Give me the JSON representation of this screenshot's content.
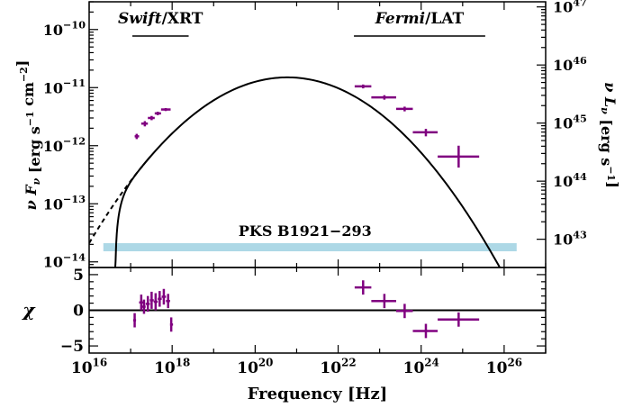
{
  "chart_data": {
    "type": "scatter",
    "source_name": "PKS B1921−293",
    "instruments": [
      {
        "name_italic": "Swift",
        "name_rest": "/XRT",
        "band_hz": [
          1.1e+17,
          2.5e+18
        ]
      },
      {
        "name_italic": "Fermi",
        "name_rest": "/LAT",
        "band_hz": [
          2.4e+22,
          3.5e+25
        ]
      }
    ],
    "xlabel": "Frequency [Hz]",
    "x_log": true,
    "xlim": [
      1e+16,
      1e+27
    ],
    "x_ticks": [
      1e+16,
      1e+18,
      1e+20,
      1e+22,
      1e+24,
      1e+26
    ],
    "x_tick_labels": [
      {
        "base": "10",
        "exp": "16"
      },
      {
        "base": "10",
        "exp": "18"
      },
      {
        "base": "10",
        "exp": "20"
      },
      {
        "base": "10",
        "exp": "22"
      },
      {
        "base": "10",
        "exp": "24"
      },
      {
        "base": "10",
        "exp": "26"
      }
    ],
    "top_panel": {
      "ylabel": "ν Fν [erg s⁻¹ cm⁻²]",
      "y_log": true,
      "ylim": [
        8e-15,
        3e-10
      ],
      "y_ticks": [
        1e-14,
        1e-13,
        1e-12,
        1e-11,
        1e-10
      ],
      "y_tick_labels": [
        {
          "base": "10",
          "exp": "-14"
        },
        {
          "base": "10",
          "exp": "-13"
        },
        {
          "base": "10",
          "exp": "-12"
        },
        {
          "base": "10",
          "exp": "-11"
        },
        {
          "base": "10",
          "exp": "-10"
        }
      ],
      "right_axis": {
        "ylabel": "ν Lν [erg s⁻¹]",
        "ticks": [
          1e+43,
          1e+44,
          1e+45,
          1e+46,
          1e+47
        ],
        "tick_labels": [
          {
            "base": "10",
            "exp": "43"
          },
          {
            "base": "10",
            "exp": "44"
          },
          {
            "base": "10",
            "exp": "45"
          },
          {
            "base": "10",
            "exp": "46"
          },
          {
            "base": "10",
            "exp": "47"
          }
        ],
        "flux_at_tick": [
          2.45e-14,
          2.45e-13,
          2.45e-12,
          2.45e-11,
          2.45e-10
        ]
      },
      "model_curve": {
        "type": "log-parabola",
        "peak_freq_hz": 6e+20,
        "peak_flux": 1.5e-11,
        "curvature": 0.125
      },
      "absorbed_model": {
        "cutoff_freq_hz": 4.2e+16,
        "joins_unabsorbed_at_hz": 3e+17
      },
      "band_strip": {
        "x_range": [
          2.2e+16,
          2e+26
        ],
        "color": "#add8e6"
      },
      "data_points": [
        {
          "x": 1.4e+17,
          "y": 1.45e-12,
          "xerr": [
            1.25e+17,
            1.6e+17
          ],
          "yerr": [
            1.3e-12,
            1.6e-12
          ]
        },
        {
          "x": 2.2e+17,
          "y": 2.4e-12,
          "xerr": [
            1.8e+17,
            2.6e+17
          ],
          "yerr": [
            2.15e-12,
            2.65e-12
          ]
        },
        {
          "x": 3.2e+17,
          "y": 3e-12,
          "xerr": [
            2.6e+17,
            3.8e+17
          ],
          "yerr": [
            2.75e-12,
            3.25e-12
          ]
        },
        {
          "x": 4.5e+17,
          "y": 3.6e-12,
          "xerr": [
            3.8e+17,
            5.4e+17
          ],
          "yerr": [
            3.35e-12,
            3.85e-12
          ]
        },
        {
          "x": 7e+17,
          "y": 4.2e-12,
          "xerr": [
            5.4e+17,
            9.2e+17
          ],
          "yerr": [
            3.95e-12,
            4.45e-12
          ]
        },
        {
          "x": 4e+22,
          "y": 1.05e-11,
          "xerr": [
            2.5e+22,
            6.3e+22
          ],
          "yerr": [
            9.7e-12,
            1.13e-11
          ]
        },
        {
          "x": 1.3e+23,
          "y": 6.8e-12,
          "xerr": [
            6.3e+22,
            2.5e+23
          ],
          "yerr": [
            6.2e-12,
            7.4e-12
          ]
        },
        {
          "x": 4e+23,
          "y": 4.3e-12,
          "xerr": [
            2.5e+23,
            6.3e+23
          ],
          "yerr": [
            3.9e-12,
            4.7e-12
          ]
        },
        {
          "x": 1.3e+24,
          "y": 1.7e-12,
          "xerr": [
            6.3e+23,
            2.5e+24
          ],
          "yerr": [
            1.45e-12,
            1.95e-12
          ]
        },
        {
          "x": 8e+24,
          "y": 6.5e-13,
          "xerr": [
            2.5e+24,
            2.5e+25
          ],
          "yerr": [
            4.2e-13,
            1e-12
          ]
        }
      ]
    },
    "bottom_panel": {
      "ylabel": "χ",
      "ylim": [
        -6,
        6
      ],
      "y_ticks": [
        -5,
        0,
        5
      ],
      "y_tick_labels": [
        "−5",
        "0",
        "5"
      ],
      "zero_line": true,
      "residuals": [
        {
          "x": 1.25e+17,
          "y": -1.4,
          "xerr": [
            1.15e+17,
            1.35e+17
          ],
          "yerr": [
            -2.4,
            -0.4
          ]
        },
        {
          "x": 1.8e+17,
          "y": 1.1,
          "xerr": [
            1.6e+17,
            2e+17
          ],
          "yerr": [
            0.0,
            2.2
          ]
        },
        {
          "x": 2.1e+17,
          "y": 0.5,
          "xerr": [
            1.9e+17,
            2.3e+17
          ],
          "yerr": [
            -0.5,
            1.5
          ]
        },
        {
          "x": 2.6e+17,
          "y": 0.9,
          "xerr": [
            2.3e+17,
            2.9e+17
          ],
          "yerr": [
            -0.2,
            2.0
          ]
        },
        {
          "x": 3.2e+17,
          "y": 1.4,
          "xerr": [
            2.9e+17,
            3.6e+17
          ],
          "yerr": [
            0.2,
            2.6
          ]
        },
        {
          "x": 4e+17,
          "y": 1.2,
          "xerr": [
            3.6e+17,
            4.5e+17
          ],
          "yerr": [
            0.0,
            2.4
          ]
        },
        {
          "x": 5e+17,
          "y": 1.6,
          "xerr": [
            4.5e+17,
            5.6e+17
          ],
          "yerr": [
            0.5,
            2.7
          ]
        },
        {
          "x": 6.3e+17,
          "y": 1.9,
          "xerr": [
            5.6e+17,
            7.1e+17
          ],
          "yerr": [
            0.8,
            3.0
          ]
        },
        {
          "x": 8e+17,
          "y": 1.3,
          "xerr": [
            7.1e+17,
            8.9e+17
          ],
          "yerr": [
            0.3,
            2.3
          ]
        },
        {
          "x": 9.5e+17,
          "y": -2.0,
          "xerr": [
            8.9e+17,
            1.05e+18
          ],
          "yerr": [
            -3.0,
            -1.0
          ]
        },
        {
          "x": 4e+22,
          "y": 3.2,
          "xerr": [
            2.5e+22,
            6.3e+22
          ],
          "yerr": [
            2.2,
            4.2
          ]
        },
        {
          "x": 1.3e+23,
          "y": 1.3,
          "xerr": [
            6.3e+22,
            2.5e+23
          ],
          "yerr": [
            0.3,
            2.3
          ]
        },
        {
          "x": 4e+23,
          "y": -0.1,
          "xerr": [
            2.5e+23,
            6.3e+23
          ],
          "yerr": [
            -1.1,
            0.9
          ]
        },
        {
          "x": 1.3e+24,
          "y": -2.9,
          "xerr": [
            6.3e+23,
            2.5e+24
          ],
          "yerr": [
            -3.9,
            -1.9
          ]
        },
        {
          "x": 8e+24,
          "y": -1.3,
          "xerr": [
            2.5e+24,
            2.5e+25
          ],
          "yerr": [
            -2.3,
            -0.3
          ]
        }
      ]
    },
    "colors": {
      "data": "#800080",
      "model": "#000000",
      "band_strip": "#add8e6"
    }
  }
}
